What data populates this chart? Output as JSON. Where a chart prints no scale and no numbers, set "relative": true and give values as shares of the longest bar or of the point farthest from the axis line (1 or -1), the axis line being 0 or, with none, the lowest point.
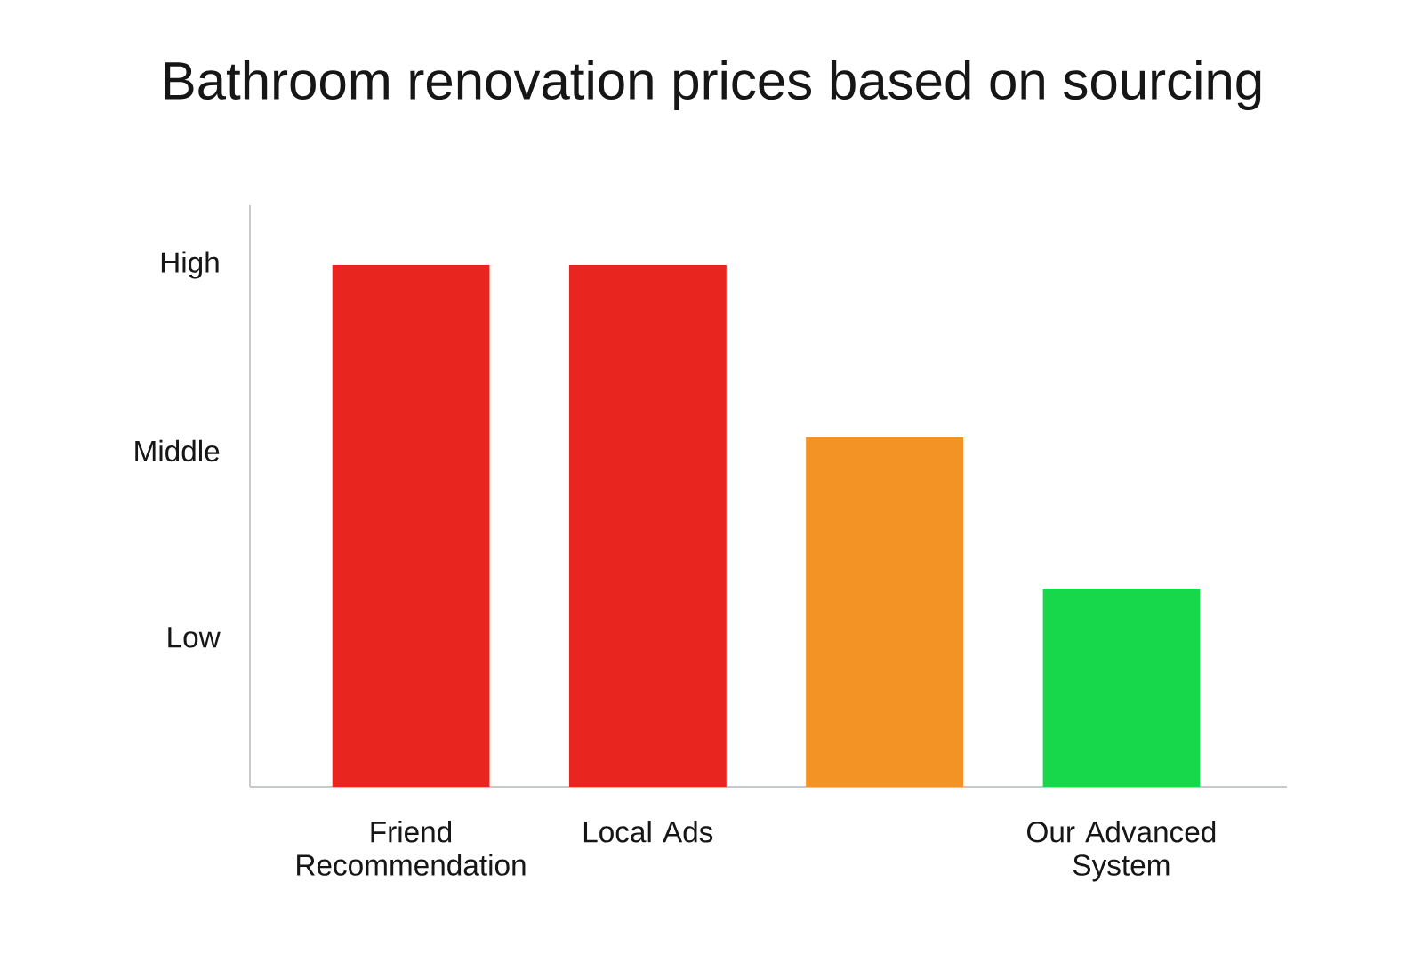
{
  "chart_data": {
    "type": "bar",
    "title": "Bathroom renovation prices based on sourcing",
    "categories": [
      "Friend Recommendation",
      "Local Ads",
      null,
      "Our Advanced System"
    ],
    "values": [
      1,
      1,
      0.67,
      0.38
    ],
    "colors": [
      "#e8261f",
      "#e8261f",
      "#f39325",
      "#16d84a"
    ],
    "relative": true,
    "annotations": [
      "High",
      "Middle",
      "Low"
    ]
  }
}
